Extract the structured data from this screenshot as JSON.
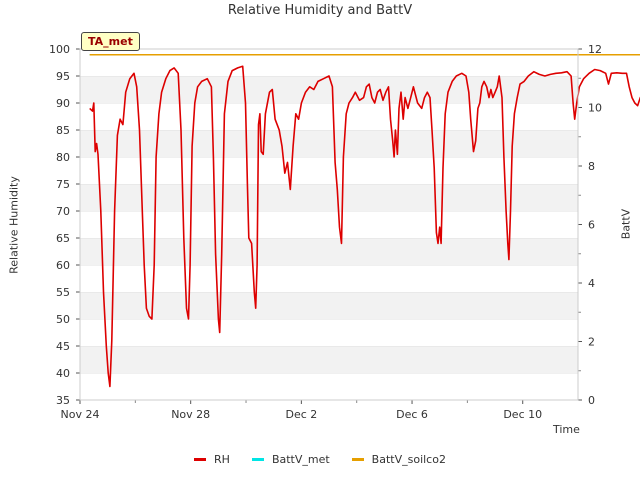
{
  "chart_data": {
    "type": "line",
    "title": "Relative Humidity and BattV",
    "xlabel": "Time",
    "ylabel_left": "Relative Humidity",
    "ylabel_right": "BattV",
    "badge": "TA_met",
    "x_tick_labels": [
      "Nov 24",
      "Nov 28",
      "Dec 2",
      "Dec 6",
      "Dec 10"
    ],
    "x_tick_days": [
      0,
      4,
      8,
      12,
      16
    ],
    "xlim_days": [
      0,
      18
    ],
    "y_left_ticks": [
      35,
      40,
      45,
      50,
      55,
      60,
      65,
      70,
      75,
      80,
      85,
      90,
      95,
      100
    ],
    "ylim_left": [
      35,
      100
    ],
    "y_right_ticks": [
      0,
      2,
      4,
      6,
      8,
      10,
      12
    ],
    "ylim_right": [
      0,
      12
    ],
    "grid": "horizontal bands",
    "legend_position": "bottom",
    "series": [
      {
        "name": "RH",
        "color": "#dd0000",
        "axis": "left",
        "points": [
          [
            0.35,
            89
          ],
          [
            0.45,
            88.5
          ],
          [
            0.5,
            90
          ],
          [
            0.55,
            81
          ],
          [
            0.6,
            82.5
          ],
          [
            0.65,
            80.5
          ],
          [
            0.75,
            70
          ],
          [
            0.85,
            55
          ],
          [
            0.95,
            45
          ],
          [
            1.02,
            40
          ],
          [
            1.08,
            37.5
          ],
          [
            1.15,
            46
          ],
          [
            1.25,
            70
          ],
          [
            1.35,
            84
          ],
          [
            1.45,
            87
          ],
          [
            1.55,
            86
          ],
          [
            1.65,
            92
          ],
          [
            1.8,
            94.5
          ],
          [
            1.95,
            95.5
          ],
          [
            2.05,
            93
          ],
          [
            2.15,
            85
          ],
          [
            2.25,
            70
          ],
          [
            2.32,
            60
          ],
          [
            2.4,
            52
          ],
          [
            2.5,
            50.5
          ],
          [
            2.6,
            50
          ],
          [
            2.68,
            60
          ],
          [
            2.75,
            80
          ],
          [
            2.85,
            88
          ],
          [
            2.95,
            92
          ],
          [
            3.1,
            94.5
          ],
          [
            3.25,
            96
          ],
          [
            3.4,
            96.5
          ],
          [
            3.55,
            95.5
          ],
          [
            3.65,
            85
          ],
          [
            3.75,
            65
          ],
          [
            3.85,
            52
          ],
          [
            3.92,
            50
          ],
          [
            3.98,
            60
          ],
          [
            4.05,
            82
          ],
          [
            4.15,
            90
          ],
          [
            4.25,
            93
          ],
          [
            4.4,
            94
          ],
          [
            4.6,
            94.5
          ],
          [
            4.75,
            93
          ],
          [
            4.82,
            80
          ],
          [
            4.9,
            62
          ],
          [
            5.0,
            50
          ],
          [
            5.05,
            47.5
          ],
          [
            5.12,
            62
          ],
          [
            5.22,
            88
          ],
          [
            5.35,
            94
          ],
          [
            5.5,
            96
          ],
          [
            5.7,
            96.5
          ],
          [
            5.88,
            96.8
          ],
          [
            5.98,
            90
          ],
          [
            6.05,
            75
          ],
          [
            6.1,
            65
          ],
          [
            6.2,
            64
          ],
          [
            6.3,
            55
          ],
          [
            6.35,
            52
          ],
          [
            6.4,
            60
          ],
          [
            6.45,
            86
          ],
          [
            6.5,
            88
          ],
          [
            6.55,
            81
          ],
          [
            6.62,
            80.5
          ],
          [
            6.7,
            88
          ],
          [
            6.85,
            92
          ],
          [
            6.95,
            92.5
          ],
          [
            7.05,
            87
          ],
          [
            7.2,
            85
          ],
          [
            7.3,
            82
          ],
          [
            7.4,
            77
          ],
          [
            7.5,
            79
          ],
          [
            7.6,
            74
          ],
          [
            7.7,
            82
          ],
          [
            7.8,
            88
          ],
          [
            7.9,
            87
          ],
          [
            8.0,
            90
          ],
          [
            8.15,
            92
          ],
          [
            8.3,
            93
          ],
          [
            8.45,
            92.5
          ],
          [
            8.6,
            94
          ],
          [
            8.8,
            94.5
          ],
          [
            9.0,
            95
          ],
          [
            9.12,
            93
          ],
          [
            9.22,
            79
          ],
          [
            9.3,
            74
          ],
          [
            9.38,
            67
          ],
          [
            9.45,
            64
          ],
          [
            9.52,
            80
          ],
          [
            9.62,
            88
          ],
          [
            9.72,
            90
          ],
          [
            9.85,
            91
          ],
          [
            9.95,
            92
          ],
          [
            10.1,
            90.5
          ],
          [
            10.25,
            91
          ],
          [
            10.35,
            93
          ],
          [
            10.45,
            93.5
          ],
          [
            10.55,
            91
          ],
          [
            10.65,
            90
          ],
          [
            10.75,
            92
          ],
          [
            10.85,
            92.5
          ],
          [
            10.95,
            90.5
          ],
          [
            11.05,
            92
          ],
          [
            11.15,
            93
          ],
          [
            11.22,
            87
          ],
          [
            11.3,
            83
          ],
          [
            11.35,
            80
          ],
          [
            11.4,
            85
          ],
          [
            11.47,
            80.5
          ],
          [
            11.53,
            89
          ],
          [
            11.6,
            92
          ],
          [
            11.68,
            87
          ],
          [
            11.75,
            91
          ],
          [
            11.85,
            89
          ],
          [
            11.95,
            91
          ],
          [
            12.05,
            93
          ],
          [
            12.2,
            90
          ],
          [
            12.35,
            89
          ],
          [
            12.45,
            91
          ],
          [
            12.55,
            92
          ],
          [
            12.65,
            91
          ],
          [
            12.72,
            85
          ],
          [
            12.8,
            78
          ],
          [
            12.88,
            66
          ],
          [
            12.94,
            64
          ],
          [
            13.0,
            67
          ],
          [
            13.05,
            64
          ],
          [
            13.12,
            78
          ],
          [
            13.2,
            88
          ],
          [
            13.3,
            92
          ],
          [
            13.45,
            94
          ],
          [
            13.6,
            95
          ],
          [
            13.8,
            95.5
          ],
          [
            13.95,
            95
          ],
          [
            14.05,
            92
          ],
          [
            14.12,
            87
          ],
          [
            14.22,
            81
          ],
          [
            14.3,
            83
          ],
          [
            14.38,
            89
          ],
          [
            14.45,
            90
          ],
          [
            14.52,
            93
          ],
          [
            14.6,
            94
          ],
          [
            14.7,
            93
          ],
          [
            14.78,
            91
          ],
          [
            14.85,
            92.5
          ],
          [
            14.92,
            91
          ],
          [
            15.0,
            92
          ],
          [
            15.08,
            93
          ],
          [
            15.15,
            95
          ],
          [
            15.25,
            91
          ],
          [
            15.32,
            80
          ],
          [
            15.4,
            70
          ],
          [
            15.46,
            64
          ],
          [
            15.5,
            61
          ],
          [
            15.56,
            70
          ],
          [
            15.62,
            82
          ],
          [
            15.7,
            88
          ],
          [
            15.8,
            91
          ],
          [
            15.9,
            93.5
          ],
          [
            16.05,
            94
          ],
          [
            16.2,
            95
          ],
          [
            16.4,
            95.8
          ],
          [
            16.6,
            95.3
          ],
          [
            16.8,
            95
          ],
          [
            17.0,
            95.3
          ],
          [
            17.2,
            95.5
          ],
          [
            17.4,
            95.6
          ],
          [
            17.6,
            95.8
          ],
          [
            17.75,
            95
          ],
          [
            17.82,
            90
          ],
          [
            17.88,
            87
          ],
          [
            17.95,
            90
          ],
          [
            18.05,
            93
          ],
          [
            18.2,
            94.5
          ],
          [
            18.4,
            95.5
          ],
          [
            18.6,
            96.2
          ],
          [
            18.8,
            96
          ],
          [
            19.0,
            95.5
          ],
          [
            19.1,
            93.5
          ],
          [
            19.2,
            95.5
          ],
          [
            19.4,
            95.6
          ],
          [
            19.6,
            95.5
          ],
          [
            19.75,
            95.5
          ],
          [
            19.85,
            93
          ],
          [
            19.95,
            91
          ],
          [
            20.05,
            90
          ],
          [
            20.15,
            89.5
          ],
          [
            20.25,
            91
          ],
          [
            20.32,
            90
          ]
        ]
      },
      {
        "name": "BattV_met",
        "color": "#00e5e5",
        "axis": "right",
        "points": [
          [
            0.35,
            11.8
          ],
          [
            20.4,
            11.8
          ]
        ]
      },
      {
        "name": "BattV_soilco2",
        "color": "#e69f00",
        "axis": "right",
        "points": [
          [
            0.35,
            11.8
          ],
          [
            20.4,
            11.8
          ],
          [
            20.4,
            0
          ]
        ]
      }
    ]
  }
}
